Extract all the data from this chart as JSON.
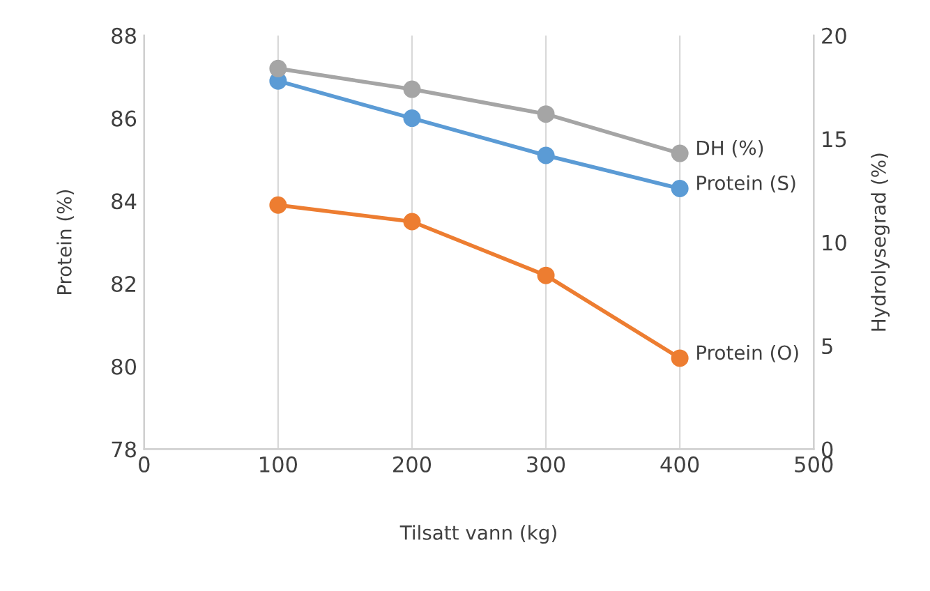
{
  "chart_data": {
    "type": "line",
    "xlabel": "Tilsatt vann (kg)",
    "ylabel": "Protein (%)",
    "y2label": "Hydrolysegrad (%)",
    "x": [
      100,
      200,
      300,
      400
    ],
    "series": [
      {
        "name": "DH (%)",
        "color": "#a5a5a5",
        "values": [
          18.4,
          17.4,
          16.2,
          14.3
        ],
        "axis": "y2"
      },
      {
        "name": "Protein (S)",
        "color": "#5b9bd5",
        "values": [
          86.9,
          86.0,
          85.1,
          84.3
        ]
      },
      {
        "name": "Protein (O)",
        "color": "#ed7d31",
        "values": [
          83.9,
          83.5,
          82.2,
          80.2
        ]
      }
    ],
    "xlim": [
      0,
      500
    ],
    "xticks": [
      0,
      100,
      200,
      300,
      400,
      500
    ],
    "ylim": [
      78,
      88
    ],
    "yticks": [
      78,
      80,
      82,
      84,
      86,
      88
    ],
    "y2lim": [
      0,
      20
    ],
    "y2ticks": [
      0,
      5,
      10,
      15,
      20
    ],
    "grid": "x",
    "marker": "circle",
    "line_style": "solid",
    "legend": false
  }
}
